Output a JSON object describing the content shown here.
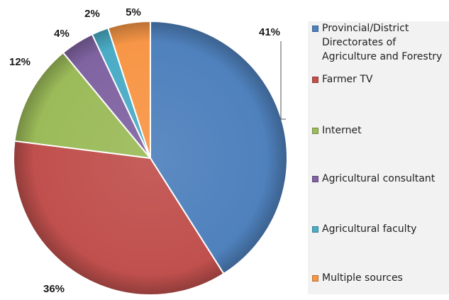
{
  "chart_data": {
    "type": "pie",
    "categories": [
      "Provincial/District Directorates of Agriculture and Forestry",
      "Farmer TV",
      "Internet",
      "Agricultural consultant",
      "Agricultural faculty",
      "Multiple sources"
    ],
    "values": [
      41,
      36,
      12,
      4,
      2,
      5
    ],
    "labels": [
      "41%",
      "36%",
      "12%",
      "4%",
      "2%",
      "5%"
    ],
    "colors": [
      "#4f81bd",
      "#c0504d",
      "#9bbb59",
      "#8064a2",
      "#4bacc6",
      "#f79646"
    ],
    "start_angle_deg": 0,
    "direction": "clockwise",
    "legend_position": "right",
    "legend_entries": [
      {
        "label": "Provincial/District Directorates of Agriculture and Forestry",
        "lines": [
          "Provincial/District",
          "Directorates of",
          "Agriculture and Forestry"
        ],
        "color": "#4f81bd"
      },
      {
        "label": "Farmer TV",
        "lines": [
          "Farmer TV"
        ],
        "color": "#c0504d"
      },
      {
        "label": "Internet",
        "lines": [
          "Internet"
        ],
        "color": "#9bbb59"
      },
      {
        "label": "Agricultural consultant",
        "lines": [
          "Agricultural consultant"
        ],
        "color": "#8064a2"
      },
      {
        "label": "Agricultural faculty",
        "lines": [
          "Agricultural faculty"
        ],
        "color": "#4bacc6"
      },
      {
        "label": "Multiple sources",
        "lines": [
          "Multiple sources"
        ],
        "color": "#f79646"
      }
    ]
  }
}
